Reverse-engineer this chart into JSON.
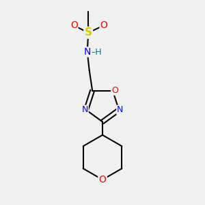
{
  "bg_color": "#f0f0f0",
  "atom_colors": {
    "C": "#000000",
    "N": "#0000ff",
    "O": "#ff0000",
    "S": "#cccc00",
    "H": "#008080"
  },
  "bond_color": "#000000",
  "font_size": 9,
  "fig_size": [
    3.0,
    3.0
  ],
  "dpi": 100
}
